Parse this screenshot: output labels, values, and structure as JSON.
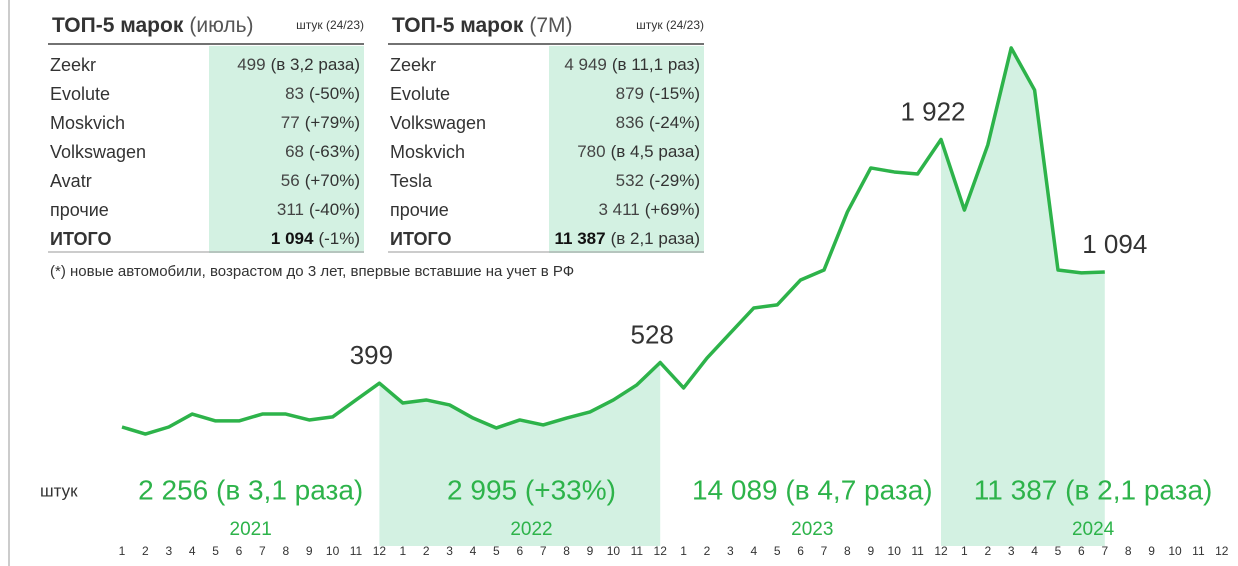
{
  "chart_data": {
    "type": "line",
    "unit_label": "штук",
    "color": "#2db34a",
    "shade_color": "#d3f1e2",
    "categories": [
      "1",
      "2",
      "3",
      "4",
      "5",
      "6",
      "7",
      "8",
      "9",
      "10",
      "11",
      "12",
      "1",
      "2",
      "3",
      "4",
      "5",
      "6",
      "7",
      "8",
      "9",
      "10",
      "11",
      "12",
      "1",
      "2",
      "3",
      "4",
      "5",
      "6",
      "7",
      "8",
      "9",
      "10",
      "11",
      "12",
      "1",
      "2",
      "3",
      "4",
      "5",
      "6",
      "7",
      "8",
      "9",
      "10",
      "11",
      "12"
    ],
    "values": [
      125,
      81,
      125,
      206,
      163,
      163,
      206,
      206,
      169,
      188,
      294,
      399,
      275,
      294,
      263,
      181,
      119,
      169,
      138,
      181,
      219,
      294,
      388,
      528,
      369,
      556,
      713,
      869,
      888,
      1044,
      1106,
      1469,
      1744,
      1719,
      1706,
      1922,
      1481,
      1888,
      2494,
      2231,
      1106,
      1088,
      1094,
      null,
      null,
      null,
      null,
      null
    ],
    "value_labels": [
      null,
      null,
      null,
      null,
      null,
      null,
      null,
      null,
      null,
      null,
      null,
      "399",
      null,
      null,
      null,
      null,
      null,
      null,
      null,
      null,
      null,
      null,
      null,
      "528",
      null,
      null,
      null,
      null,
      null,
      null,
      null,
      null,
      null,
      null,
      null,
      "1 922",
      null,
      null,
      null,
      null,
      null,
      null,
      "1 094",
      null,
      null,
      null,
      null,
      null
    ],
    "periods": [
      {
        "year": "2021",
        "total": "2 256 (в 3,1 раза)",
        "shaded": false
      },
      {
        "year": "2022",
        "total": "2 995 (+33%)",
        "shaded": true
      },
      {
        "year": "2023",
        "total": "14 089 (в 4,7 раза)",
        "shaded": false
      },
      {
        "year": "2024",
        "total": "11 387 (в 2,1 раза)",
        "shaded": true
      }
    ]
  },
  "tables": [
    {
      "title": "ТОП-5 марок",
      "period": "(июль)",
      "unit": "штук (24/23)",
      "rows": [
        {
          "name": "Zeekr",
          "value": "499",
          "change": "(в 3,2 раза)"
        },
        {
          "name": "Evolute",
          "value": "83",
          "change": "(-50%)"
        },
        {
          "name": "Moskvich",
          "value": "77",
          "change": "(+79%)"
        },
        {
          "name": "Volkswagen",
          "value": "68",
          "change": "(-63%)"
        },
        {
          "name": "Avatr",
          "value": "56",
          "change": "(+70%)"
        },
        {
          "name": "прочие",
          "value": "311",
          "change": "(-40%)"
        },
        {
          "name": "ИТОГО",
          "value": "1 094",
          "change": "(-1%)"
        }
      ]
    },
    {
      "title": "ТОП-5 марок",
      "period": "(7М)",
      "unit": "штук (24/23)",
      "rows": [
        {
          "name": "Zeekr",
          "value": "4 949",
          "change": "(в 11,1 раз)"
        },
        {
          "name": "Evolute",
          "value": "879",
          "change": "(-15%)"
        },
        {
          "name": "Volkswagen",
          "value": "836",
          "change": "(-24%)"
        },
        {
          "name": "Moskvich",
          "value": "780",
          "change": "(в 4,5 раза)"
        },
        {
          "name": "Tesla",
          "value": "532",
          "change": "(-29%)"
        },
        {
          "name": "прочие",
          "value": "3 411",
          "change": "(+69%)"
        },
        {
          "name": "ИТОГО",
          "value": "11 387",
          "change": "(в 2,1 раза)"
        }
      ]
    }
  ],
  "footnote": "(*) новые автомобили, возрастом до 3 лет, впервые вставшие на учет в РФ"
}
